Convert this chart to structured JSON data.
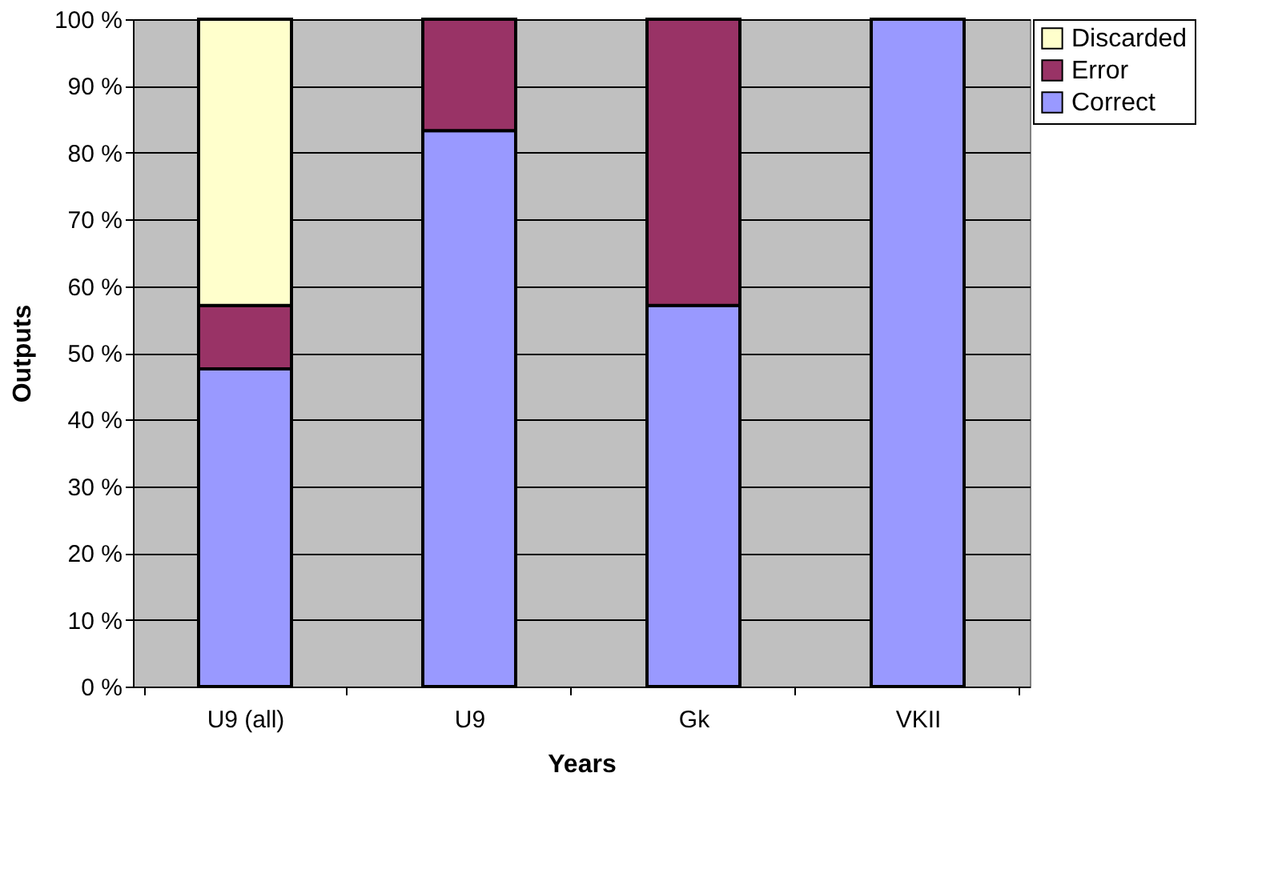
{
  "chart_data": {
    "type": "bar",
    "stacked": true,
    "xlabel": "Years",
    "ylabel": "Outputs",
    "categories": [
      "U9 (all)",
      "U9",
      "Gk",
      "VKII"
    ],
    "series": [
      {
        "name": "Correct",
        "color": "#9999ff",
        "values": [
          47.6,
          83.3,
          57.1,
          100
        ]
      },
      {
        "name": "Error",
        "color": "#993366",
        "values": [
          9.5,
          16.7,
          42.9,
          null
        ]
      },
      {
        "name": "Discarded",
        "color": "#ffffcc",
        "values": [
          42.9,
          null,
          null,
          null
        ]
      }
    ],
    "ylim": [
      0,
      100
    ],
    "yticks": [
      {
        "value": 0,
        "label": "0 %"
      },
      {
        "value": 10,
        "label": "10 %"
      },
      {
        "value": 20,
        "label": "20 %"
      },
      {
        "value": 30,
        "label": "30 %"
      },
      {
        "value": 40,
        "label": "40 %"
      },
      {
        "value": 50,
        "label": "50 %"
      },
      {
        "value": 60,
        "label": "60 %"
      },
      {
        "value": 70,
        "label": "70 %"
      },
      {
        "value": 80,
        "label": "80 %"
      },
      {
        "value": 90,
        "label": "90 %"
      },
      {
        "value": 100,
        "label": "100 %"
      }
    ],
    "grid": "y",
    "legend": "right"
  }
}
